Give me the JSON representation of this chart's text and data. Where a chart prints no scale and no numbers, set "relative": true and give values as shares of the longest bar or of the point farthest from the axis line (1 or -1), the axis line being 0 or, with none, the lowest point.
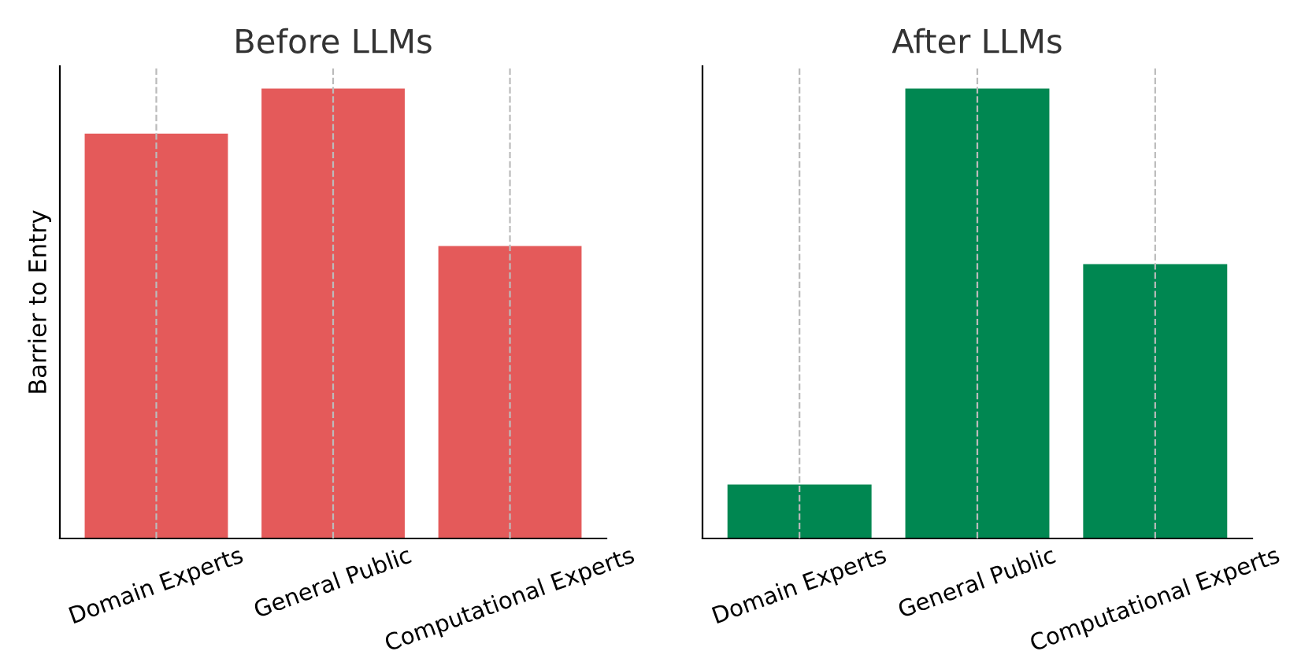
{
  "chart_data": [
    {
      "type": "bar",
      "title": "Before LLMs",
      "ylabel": "Barrier to Entry",
      "categories": [
        "Domain Experts",
        "General Public",
        "Computational Experts"
      ],
      "relative": true,
      "grid": "x",
      "series": [
        {
          "color": "#e45a5a",
          "values": [
            0.9,
            1,
            0.65
          ]
        }
      ]
    },
    {
      "type": "bar",
      "title": "After LLMs",
      "categories": [
        "Domain Experts",
        "General Public",
        "Computational Experts"
      ],
      "relative": true,
      "grid": "x",
      "series": [
        {
          "color": "#008751",
          "values": [
            0.12,
            1,
            0.61
          ]
        }
      ]
    }
  ]
}
